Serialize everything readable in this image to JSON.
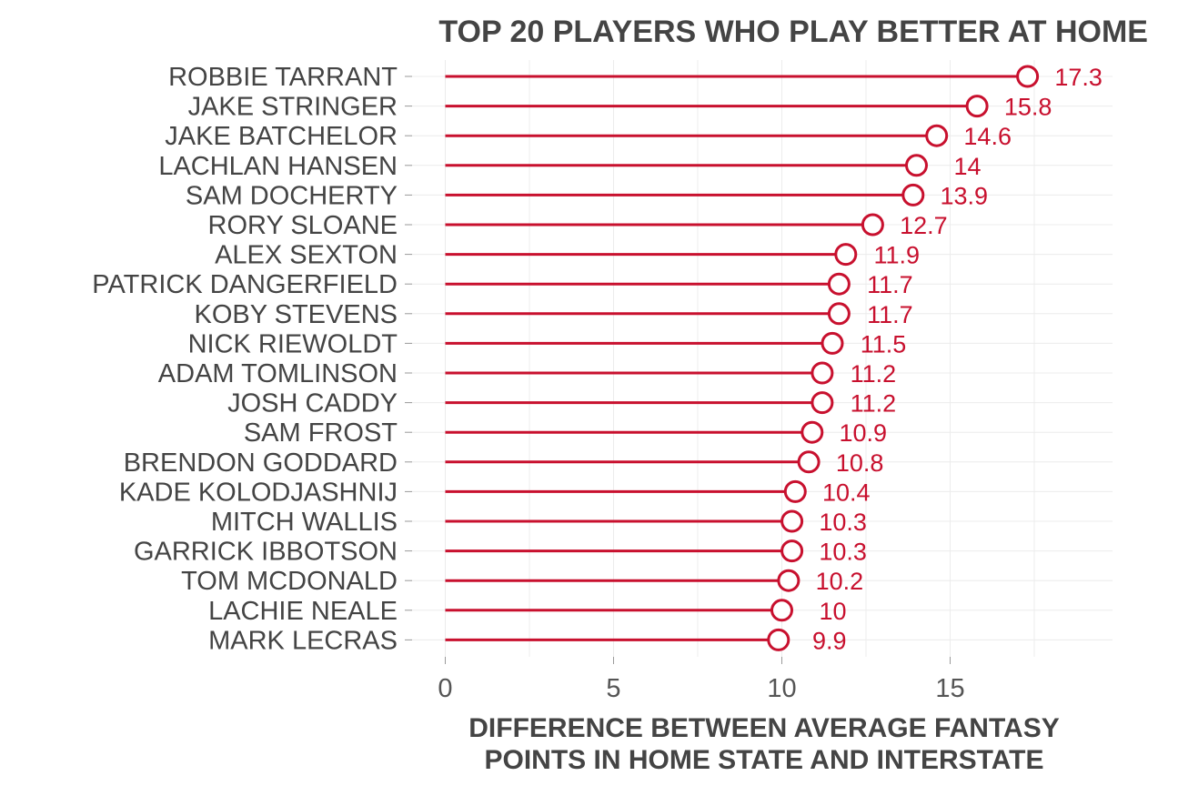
{
  "chart_data": {
    "type": "lollipop",
    "title": "TOP 20 PLAYERS WHO PLAY BETTER AT HOME",
    "xlabel": "DIFFERENCE BETWEEN AVERAGE FANTASY POINTS IN HOME STATE AND INTERSTATE",
    "xlabel_lines": [
      "DIFFERENCE BETWEEN AVERAGE FANTASY",
      "POINTS IN HOME STATE AND INTERSTATE"
    ],
    "ylabel": "",
    "xlim": [
      0,
      19.8
    ],
    "x_ticks": [
      0,
      5,
      10,
      15
    ],
    "grid": true,
    "colors": {
      "accent": "#c8102e",
      "text": "#444444",
      "grid": "#ececec"
    },
    "categories": [
      "ROBBIE TARRANT",
      "JAKE STRINGER",
      "JAKE BATCHELOR",
      "LACHLAN HANSEN",
      "SAM DOCHERTY",
      "RORY SLOANE",
      "ALEX SEXTON",
      "PATRICK DANGERFIELD",
      "KOBY STEVENS",
      "NICK RIEWOLDT",
      "ADAM TOMLINSON",
      "JOSH CADDY",
      "SAM FROST",
      "BRENDON GODDARD",
      "KADE KOLODJASHNIJ",
      "MITCH WALLIS",
      "GARRICK IBBOTSON",
      "TOM MCDONALD",
      "LACHIE NEALE",
      "MARK LECRAS"
    ],
    "values": [
      17.3,
      15.8,
      14.6,
      14,
      13.9,
      12.7,
      11.9,
      11.7,
      11.7,
      11.5,
      11.2,
      11.2,
      10.9,
      10.8,
      10.4,
      10.3,
      10.3,
      10.2,
      10,
      9.9
    ]
  }
}
